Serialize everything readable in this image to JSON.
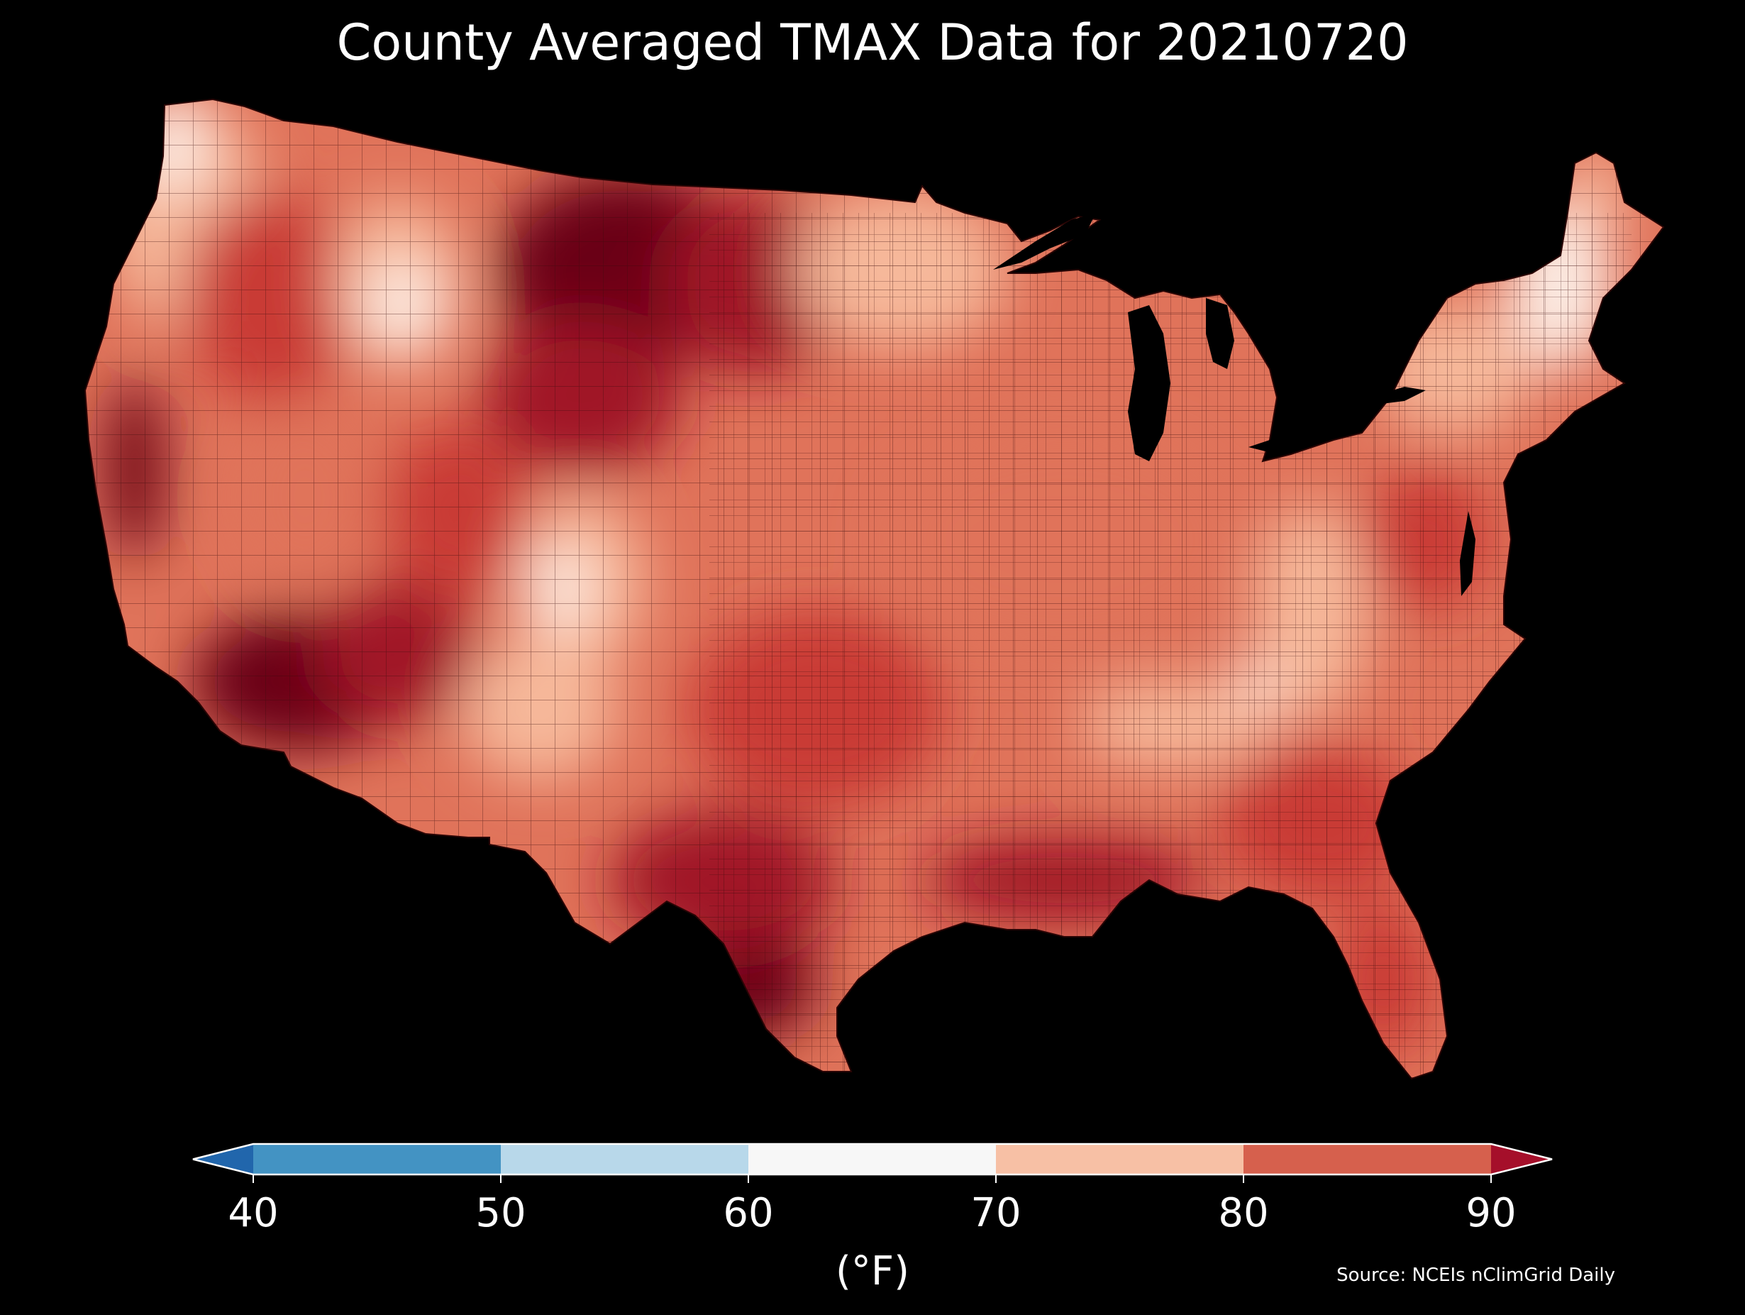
{
  "title": "County Averaged TMAX Data for 20210720",
  "colorbar": {
    "unit_label": "(°F)",
    "ticks": [
      "40",
      "50",
      "60",
      "70",
      "80",
      "90"
    ],
    "bins": [
      {
        "from": 40,
        "to": 50,
        "color": "#4393c3"
      },
      {
        "from": 50,
        "to": 60,
        "color": "#b8d8ea"
      },
      {
        "from": 60,
        "to": 70,
        "color": "#f7f7f7"
      },
      {
        "from": 70,
        "to": 80,
        "color": "#f7c0a5"
      },
      {
        "from": 80,
        "to": 90,
        "color": "#d6604d"
      }
    ],
    "under_color": "#2166ac",
    "over_color": "#a50f2a"
  },
  "source": "Source: NCEIs nClimGrid Daily",
  "map_colors": {
    "coldest": "#fdf0e8",
    "cool": "#f6b89a",
    "mid": "#e0735a",
    "warm": "#c93a36",
    "hot": "#a01527",
    "hottest": "#6b0017",
    "border": "#3a0a0a",
    "background": "#000000"
  }
}
